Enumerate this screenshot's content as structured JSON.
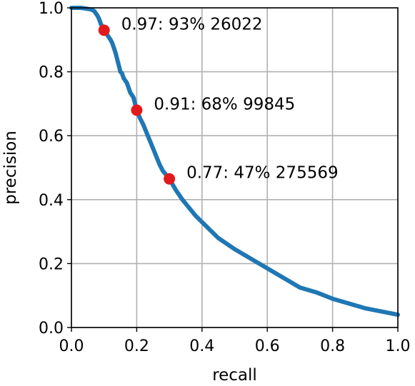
{
  "chart_data": {
    "type": "line",
    "title": "",
    "xlabel": "recall",
    "ylabel": "precision",
    "xlim": [
      0.0,
      1.0
    ],
    "ylim": [
      0.0,
      1.0
    ],
    "grid": true,
    "xticks": [
      "0.0",
      "0.2",
      "0.4",
      "0.6",
      "0.8",
      "1.0"
    ],
    "yticks": [
      "0.0",
      "0.2",
      "0.4",
      "0.6",
      "0.8",
      "1.0"
    ],
    "line_color": "#1f77b4",
    "marker_color": "#e31a1c",
    "series": [
      {
        "x": [
          0.0,
          0.03,
          0.06,
          0.07,
          0.08,
          0.085,
          0.09,
          0.1,
          0.11,
          0.12,
          0.125,
          0.13,
          0.135,
          0.14,
          0.145,
          0.15,
          0.155,
          0.16,
          0.17,
          0.175,
          0.18,
          0.19,
          0.2,
          0.21,
          0.22,
          0.23,
          0.24,
          0.25,
          0.26,
          0.27,
          0.28,
          0.29,
          0.3,
          0.32,
          0.34,
          0.36,
          0.38,
          0.4,
          0.45,
          0.5,
          0.55,
          0.6,
          0.65,
          0.7,
          0.75,
          0.8,
          0.85,
          0.9,
          0.95,
          1.0
        ],
        "y": [
          1.0,
          1.0,
          0.995,
          0.99,
          0.975,
          0.965,
          0.95,
          0.93,
          0.915,
          0.9,
          0.89,
          0.875,
          0.86,
          0.84,
          0.82,
          0.8,
          0.795,
          0.78,
          0.765,
          0.75,
          0.735,
          0.72,
          0.68,
          0.655,
          0.635,
          0.61,
          0.585,
          0.56,
          0.535,
          0.51,
          0.49,
          0.478,
          0.465,
          0.43,
          0.4,
          0.375,
          0.35,
          0.33,
          0.28,
          0.245,
          0.215,
          0.185,
          0.155,
          0.125,
          0.11,
          0.09,
          0.075,
          0.06,
          0.05,
          0.04
        ]
      }
    ],
    "markers": [
      {
        "x": 0.1,
        "y": 0.93,
        "label": "0.97: 93% 26022"
      },
      {
        "x": 0.2,
        "y": 0.68,
        "label": "0.91: 68% 99845"
      },
      {
        "x": 0.3,
        "y": 0.465,
        "label": "0.77: 47% 275569"
      }
    ]
  }
}
